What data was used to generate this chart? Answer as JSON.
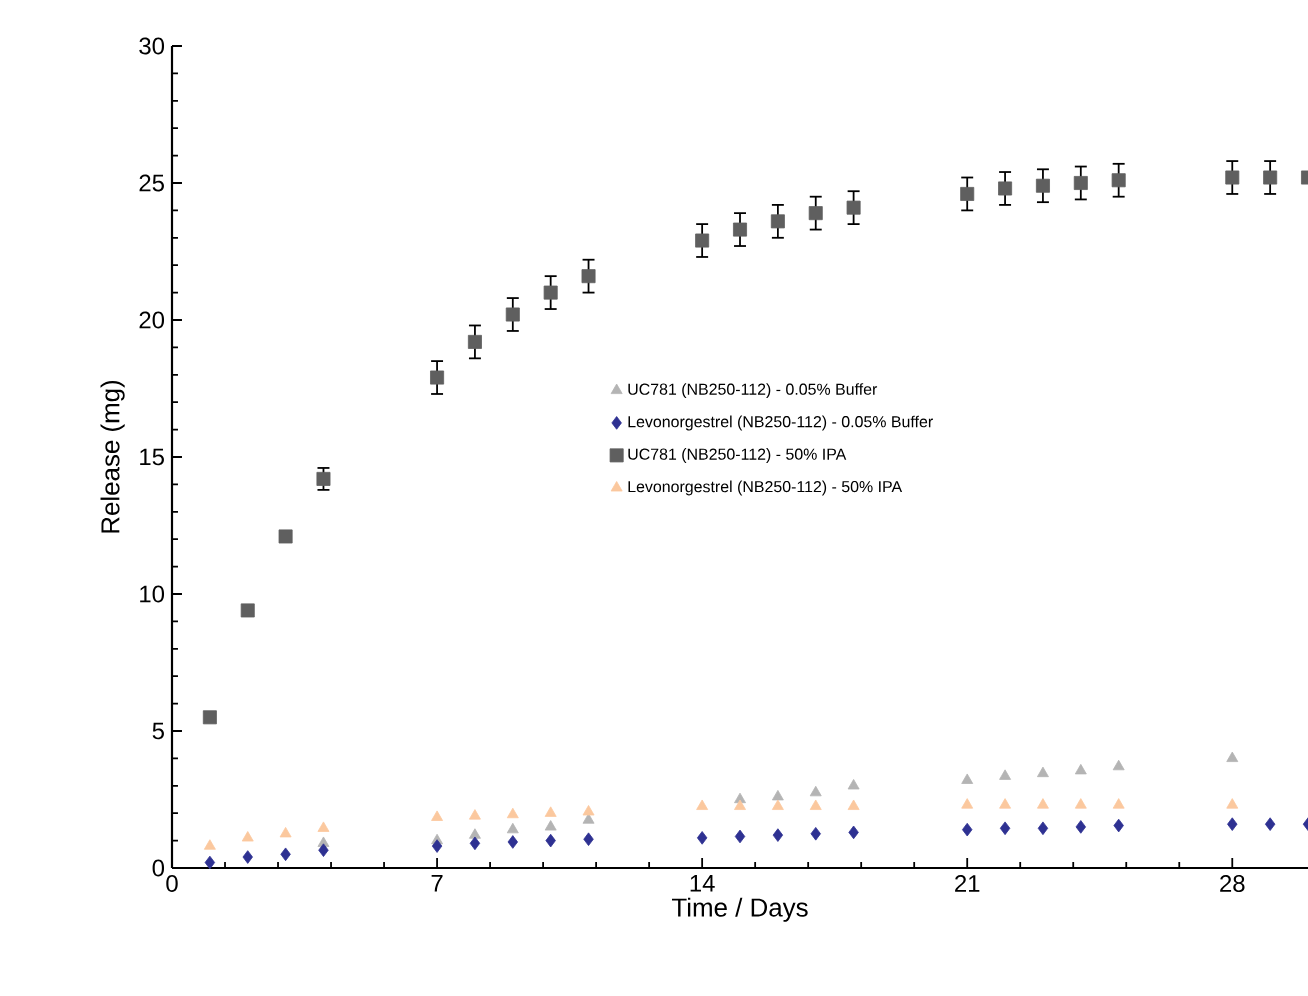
{
  "chart_data": {
    "type": "scatter",
    "xlabel": "Time / Days",
    "ylabel": "Release (mg)",
    "xlim": [
      0,
      30
    ],
    "ylim": [
      0,
      30
    ],
    "xticks": [
      0,
      7,
      14,
      21,
      28
    ],
    "yticks": [
      0,
      5,
      10,
      15,
      20,
      25,
      30
    ],
    "grid": false,
    "legend": "right",
    "series": [
      {
        "name": "UC781 (NB250-112) - 0.05% Buffer",
        "color": "#b4b4b4",
        "marker": "triangle",
        "x": [
          4,
          7,
          8,
          9,
          10,
          11,
          15,
          16,
          17,
          18,
          21,
          22,
          23,
          24,
          25,
          28
        ],
        "values": [
          0.9,
          1.0,
          1.2,
          1.4,
          1.5,
          1.75,
          2.5,
          2.6,
          2.75,
          3.0,
          3.2,
          3.35,
          3.45,
          3.55,
          3.7,
          4.0
        ]
      },
      {
        "name": "Levonorgestrel (NB250-112) - 0.05% Buffer",
        "color": "#2e3192",
        "marker": "diamond",
        "x": [
          1,
          2,
          3,
          4,
          7,
          8,
          9,
          10,
          11,
          14,
          15,
          16,
          17,
          18,
          21,
          22,
          23,
          24,
          25,
          28,
          29,
          30
        ],
        "values": [
          0.2,
          0.4,
          0.5,
          0.65,
          0.8,
          0.9,
          0.95,
          1.0,
          1.05,
          1.1,
          1.15,
          1.2,
          1.25,
          1.3,
          1.4,
          1.45,
          1.45,
          1.5,
          1.55,
          1.6,
          1.6,
          1.6
        ]
      },
      {
        "name": "UC781 (NB250-112) - 50% IPA",
        "color": "#5f5f5f",
        "marker": "square",
        "x": [
          1,
          2,
          3,
          4,
          7,
          8,
          9,
          10,
          11,
          14,
          15,
          16,
          17,
          18,
          21,
          22,
          23,
          24,
          25,
          28,
          29,
          30
        ],
        "values": [
          5.5,
          9.4,
          12.1,
          14.2,
          17.9,
          19.2,
          20.2,
          21.0,
          21.6,
          22.9,
          23.3,
          23.6,
          23.9,
          24.1,
          24.6,
          24.8,
          24.9,
          25.0,
          25.1,
          25.2,
          25.2,
          25.2
        ],
        "errors": [
          null,
          null,
          null,
          0.4,
          0.6,
          0.6,
          0.6,
          0.6,
          0.6,
          0.6,
          0.6,
          0.6,
          0.6,
          0.6,
          0.6,
          0.6,
          0.6,
          0.6,
          0.6,
          0.6,
          0.6,
          null
        ]
      },
      {
        "name": "Levonorgestrel (NB250-112) - 50% IPA",
        "color": "#fbc89e",
        "marker": "triangle",
        "x": [
          1,
          2,
          3,
          4,
          7,
          8,
          9,
          10,
          11,
          14,
          15,
          16,
          17,
          18,
          21,
          22,
          23,
          24,
          25,
          28
        ],
        "values": [
          0.8,
          1.1,
          1.25,
          1.45,
          1.85,
          1.9,
          1.95,
          2.0,
          2.05,
          2.25,
          2.25,
          2.25,
          2.25,
          2.25,
          2.3,
          2.3,
          2.3,
          2.3,
          2.3,
          2.3
        ]
      }
    ]
  }
}
